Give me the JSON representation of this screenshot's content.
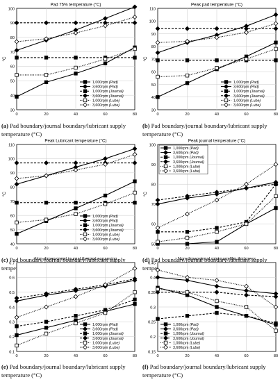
{
  "series_styles": {
    "1000 (Pad)": {
      "color": "#000000",
      "dash": "none",
      "marker": "square-filled",
      "width": 1.1
    },
    "3600 (Pad)": {
      "color": "#000000",
      "dash": "none",
      "marker": "diamond-filled",
      "width": 1.1
    },
    "1000 (Journal)": {
      "color": "#000000",
      "dash": "3,2",
      "marker": "square-filled",
      "width": 1.1
    },
    "3600 (Journal)": {
      "color": "#000000",
      "dash": "3,2",
      "marker": "diamond-filled",
      "width": 1.1
    },
    "1000 (Lube)": {
      "color": "#000000",
      "dash": "1,1.4",
      "marker": "square-open",
      "width": 1.1
    },
    "3600 (Lube)": {
      "color": "#000000",
      "dash": "1,1.4",
      "marker": "diamond-open",
      "width": 1.1
    }
  },
  "legend_labels": [
    {
      "speed": "1,000rpm",
      "type": "(Pad)"
    },
    {
      "speed": "3,600rpm",
      "type": "(Pad)"
    },
    {
      "speed": "1,000rpm",
      "type": "(Journal)"
    },
    {
      "speed": "3,600rpm",
      "type": "(Journal)"
    },
    {
      "speed": "1,000rpm",
      "type": "(Lube)"
    },
    {
      "speed": "3,600rpm",
      "type": "(Lube)"
    }
  ],
  "chart_data": [
    {
      "id": "a",
      "type": "line",
      "title": "Pad 75% temperature (°C)",
      "ylabel": "°C",
      "xlabel": "",
      "x": [
        0,
        20,
        40,
        60,
        80
      ],
      "xlim": [
        0,
        80
      ],
      "ylim": [
        30,
        100
      ],
      "yticks": [
        30,
        40,
        50,
        60,
        70,
        80,
        90,
        100
      ],
      "xticks": [
        0,
        20,
        40,
        60,
        80
      ],
      "legend": "bottom-right",
      "grid": true,
      "series": [
        {
          "key": "1000 (Pad)",
          "values": [
            39,
            49,
            55,
            62,
            73
          ]
        },
        {
          "key": "3600 (Pad)",
          "values": [
            71,
            78,
            85,
            93,
            101
          ]
        },
        {
          "key": "1000 (Journal)",
          "values": [
            66,
            66,
            66,
            66,
            66
          ]
        },
        {
          "key": "3600 (Journal)",
          "values": [
            90,
            90,
            90,
            90,
            90
          ]
        },
        {
          "key": "1000 (Lube)",
          "values": [
            54,
            54,
            59,
            65,
            72
          ]
        },
        {
          "key": "3600 (Lube)",
          "values": [
            77,
            79,
            83,
            88,
            94
          ]
        }
      ],
      "caption_label": "(a)",
      "caption_text": "Pad boundary/journal boundary/lubricant supply temperature (°C)"
    },
    {
      "id": "b",
      "type": "line",
      "title": "Peak pad temperature (°C)",
      "ylabel": "°C",
      "xlabel": "",
      "x": [
        0,
        20,
        40,
        60,
        80
      ],
      "xlim": [
        0,
        80
      ],
      "ylim": [
        30,
        110
      ],
      "yticks": [
        30,
        40,
        50,
        60,
        70,
        80,
        90,
        100,
        110
      ],
      "xticks": [
        0,
        20,
        40,
        60,
        80
      ],
      "legend": "bottom-right",
      "grid": true,
      "series": [
        {
          "key": "1000 (Pad)",
          "values": [
            40,
            51,
            62,
            72,
            83
          ]
        },
        {
          "key": "3600 (Pad)",
          "values": [
            75,
            83,
            89,
            96,
            105
          ]
        },
        {
          "key": "1000 (Journal)",
          "values": [
            69,
            69,
            69,
            69,
            69
          ]
        },
        {
          "key": "3600 (Journal)",
          "values": [
            94,
            94,
            94,
            94,
            94
          ]
        },
        {
          "key": "1000 (Lube)",
          "values": [
            56,
            57,
            63,
            70,
            78
          ]
        },
        {
          "key": "3600 (Lube)",
          "values": [
            83,
            84,
            87,
            91,
            98
          ]
        }
      ],
      "caption_label": "(b)",
      "caption_text": "Pad boundary/journal boundary/lubricant supply temperature (°C)"
    },
    {
      "id": "c",
      "type": "line",
      "title": "Peak Lubricant temperature (°C)",
      "ylabel": "°C",
      "xlabel": "",
      "x": [
        0,
        20,
        40,
        60,
        80
      ],
      "xlim": [
        0,
        80
      ],
      "ylim": [
        40,
        110
      ],
      "yticks": [
        40,
        50,
        60,
        70,
        80,
        90,
        100,
        110
      ],
      "xticks": [
        0,
        20,
        40,
        60,
        80
      ],
      "legend": "bottom-right",
      "grid": true,
      "series": [
        {
          "key": "1000 (Pad)",
          "values": [
            47,
            56,
            65,
            74,
            84
          ]
        },
        {
          "key": "3600 (Pad)",
          "values": [
            82,
            88,
            94,
            100,
            107
          ]
        },
        {
          "key": "1000 (Journal)",
          "values": [
            69,
            69,
            69,
            69,
            69
          ]
        },
        {
          "key": "3600 (Journal)",
          "values": [
            97,
            97,
            97,
            97,
            97
          ]
        },
        {
          "key": "1000 (Lube)",
          "values": [
            55,
            57,
            61,
            68,
            76
          ]
        },
        {
          "key": "3600 (Lube)",
          "values": [
            86,
            88,
            92,
            96,
            103
          ]
        }
      ],
      "caption_label": "(c)",
      "caption_text": "Pad boundary/journal boundary/lubricant supply temperature (°C)"
    },
    {
      "id": "d",
      "type": "line",
      "title": "Peak journal temperature (°C)",
      "ylabel": "°C",
      "xlabel": "",
      "x": [
        0,
        20,
        40,
        60,
        80
      ],
      "xlim": [
        0,
        80
      ],
      "ylim": [
        50,
        100
      ],
      "yticks": [
        50,
        60,
        70,
        80,
        90,
        100
      ],
      "xticks": [
        0,
        20,
        40,
        60,
        80
      ],
      "legend": "top-left",
      "grid": true,
      "series": [
        {
          "key": "1000 (Pad)",
          "values": [
            50,
            50,
            51,
            60,
            68
          ]
        },
        {
          "key": "3600 (Pad)",
          "values": [
            70,
            73,
            75,
            78,
            81
          ]
        },
        {
          "key": "1000 (Journal)",
          "values": [
            56,
            56,
            58,
            61,
            80
          ]
        },
        {
          "key": "3600 (Journal)",
          "values": [
            72,
            74,
            76,
            78,
            80
          ]
        },
        {
          "key": "1000 (Lube)",
          "values": [
            51,
            53,
            56,
            60,
            74
          ]
        },
        {
          "key": "3600 (Lube)",
          "values": [
            58,
            65,
            72,
            80,
            90
          ]
        }
      ],
      "caption_label": "(d)",
      "caption_text": "Pad boundary/journal boundary/lubricant supply temperature (°C)"
    },
    {
      "id": "e",
      "type": "line",
      "title": "Non-dimensional journal thermal expansion",
      "ylabel": "",
      "xlabel": "",
      "x": [
        0,
        20,
        40,
        60,
        80
      ],
      "xlim": [
        0,
        80
      ],
      "ylim": [
        0.1,
        0.7
      ],
      "yticks": [
        0.1,
        0.2,
        0.3,
        0.4,
        0.5,
        0.6,
        0.7
      ],
      "xticks": [
        0,
        20,
        40,
        60,
        80
      ],
      "legend": "bottom-right",
      "grid": true,
      "series": [
        {
          "key": "1000 (Pad)",
          "values": [
            0.21,
            0.26,
            0.31,
            0.37,
            0.42
          ]
        },
        {
          "key": "3600 (Pad)",
          "values": [
            0.44,
            0.48,
            0.51,
            0.54,
            0.58
          ]
        },
        {
          "key": "1000 (Journal)",
          "values": [
            0.27,
            0.3,
            0.34,
            0.38,
            0.45
          ]
        },
        {
          "key": "3600 (Journal)",
          "values": [
            0.46,
            0.49,
            0.52,
            0.55,
            0.59
          ]
        },
        {
          "key": "1000 (Lube)",
          "values": [
            0.14,
            0.22,
            0.29,
            0.36,
            0.5
          ]
        },
        {
          "key": "3600 (Lube)",
          "values": [
            0.33,
            0.4,
            0.47,
            0.55,
            0.66
          ]
        }
      ],
      "caption_label": "(e)",
      "caption_text": "Pad boundary/journal boundary/lubricant supply temperature (°C)"
    },
    {
      "id": "f",
      "type": "line",
      "title": "Non-dimensional minimum film thickness",
      "ylabel": "",
      "xlabel": "",
      "x": [
        0,
        20,
        40,
        60,
        80
      ],
      "xlim": [
        0,
        80
      ],
      "ylim": [
        0.15,
        0.45
      ],
      "yticks": [
        0.15,
        0.2,
        0.25,
        0.3,
        0.35,
        0.4,
        0.45
      ],
      "xticks": [
        0,
        20,
        40,
        60,
        80
      ],
      "legend": "bottom-left",
      "grid": true,
      "series": [
        {
          "key": "1000 (Pad)",
          "values": [
            0.365,
            0.34,
            0.3,
            0.27,
            0.24
          ]
        },
        {
          "key": "3600 (Pad)",
          "values": [
            0.4,
            0.39,
            0.37,
            0.355,
            0.345
          ]
        },
        {
          "key": "1000 (Journal)",
          "values": [
            0.26,
            0.27,
            0.28,
            0.27,
            0.245
          ]
        },
        {
          "key": "3600 (Journal)",
          "values": [
            0.35,
            0.35,
            0.35,
            0.34,
            0.335
          ]
        },
        {
          "key": "1000 (Lube)",
          "values": [
            0.36,
            0.35,
            0.32,
            0.3,
            0.22
          ]
        },
        {
          "key": "3600 (Lube)",
          "values": [
            0.425,
            0.4,
            0.39,
            0.37,
            0.3
          ]
        }
      ],
      "caption_label": "(f)",
      "caption_text": "Pad boundary/journal boundary/lubricant supply temperature (°C)"
    }
  ]
}
